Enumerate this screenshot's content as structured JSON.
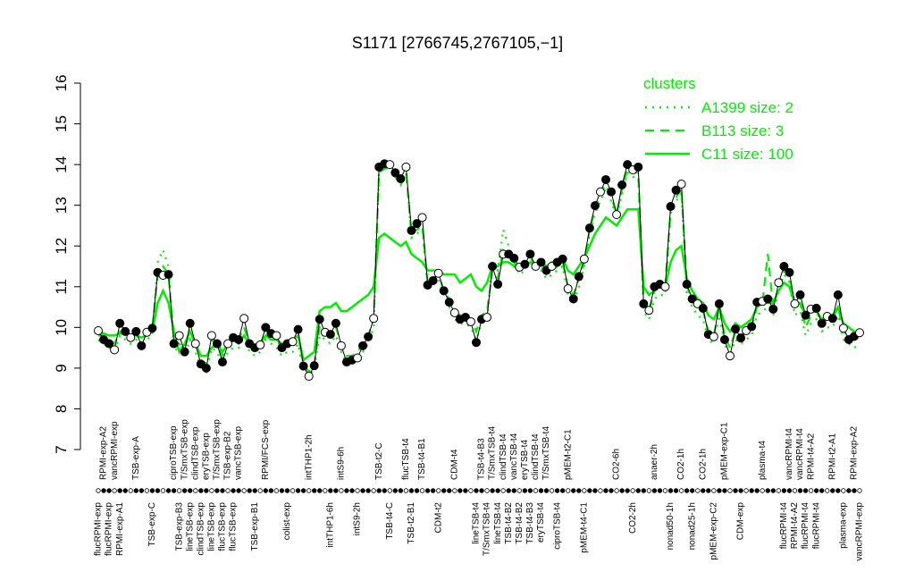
{
  "chart_data": {
    "type": "line",
    "title": "S1171 [2766745,2767105,−1]",
    "legend_title": "clusters",
    "legend_color": "#00ee00",
    "ylim": [
      7,
      16
    ],
    "yticks": [
      7,
      8,
      9,
      10,
      11,
      12,
      13,
      14,
      15,
      16
    ],
    "color": "#000000",
    "categories": [
      "flucRPMI-exp",
      "RPMI-exp-A2",
      "flucRPMI-exp",
      "vancRPMI-exp",
      "RPMI-exp-A1",
      null,
      null,
      "TSB-exp-A",
      null,
      null,
      "TSB-exp-C",
      null,
      null,
      null,
      "ciproTSB-exp",
      "TSB-exp-B3",
      "T/SmxTSB-exp",
      "lineTSB-exp",
      "clindTSB-exp",
      "clindTSB-exp",
      "eryTSB-exp",
      "lineTSB-exp",
      "T/SmxTSB-exp",
      "flucTSB-exp",
      "TSB-exp-B2",
      "flucTSB-exp",
      "vancTSB-exp",
      null,
      null,
      "TSB-exp-B1",
      null,
      "RPMI/FCS-exp",
      null,
      null,
      null,
      "colist-exp",
      null,
      null,
      null,
      "intTHP1-2h",
      null,
      null,
      null,
      "intTHP1-6h",
      null,
      "intS9-6h",
      null,
      null,
      "intS9-2h",
      null,
      null,
      null,
      "TSB-t2-C",
      null,
      "TSB-t4-C",
      null,
      null,
      "flucTSB-t4",
      "TSB-t2-B1",
      null,
      "TSB-t4-B1",
      null,
      null,
      "CDM-t2",
      null,
      null,
      "CDM-t4",
      null,
      null,
      null,
      "lineTSB-t4",
      "TSB-t4-B3",
      "T/SmxTSB-t4",
      "T/SmxTSB-t4",
      "lineTSB-t4",
      "clindTSB-t4",
      "TSB-t4-B2",
      "vancTSB-t4",
      "TSB-t4-B2",
      "eryTSB-t4",
      "TSB-t4-B3",
      "clindTSB-t4",
      "eryTSB-t4",
      "T/SmxTSB-t4",
      null,
      "ciproTSB-t4",
      null,
      "pMEM-t2-C1",
      null,
      null,
      "pMEM-t4-C1",
      null,
      null,
      null,
      null,
      null,
      "CO2-6h",
      null,
      null,
      "CO2-2h",
      null,
      null,
      null,
      "anaer-2h",
      null,
      null,
      "nonad50-1h",
      null,
      "CO2-1h",
      null,
      "nonad25-1h",
      null,
      "CO2-1h",
      null,
      "pMEM-exp-C2",
      null,
      "pMEM-exp-C1",
      null,
      null,
      "CDM-exp",
      null,
      null,
      null,
      "plasma-t4",
      null,
      null,
      null,
      "flucRPMI-t4",
      "vancRPMI-t4",
      "RPMI-t4-A2",
      "vancRPMI-t4",
      "flucRPMI-t4",
      "RPMI-t4-A2",
      "flucRPMI-t4",
      null,
      null,
      "RPMI-t2-A1",
      null,
      "plasma-exp",
      null,
      "RPMI-exp-A2",
      "vancRPMI-exp"
    ],
    "values": [
      9.92,
      9.7,
      9.6,
      9.45,
      10.1,
      9.9,
      9.75,
      9.9,
      9.55,
      9.88,
      9.98,
      11.35,
      11.28,
      11.3,
      9.6,
      9.8,
      9.4,
      10.1,
      9.6,
      9.1,
      9.0,
      9.8,
      9.6,
      9.15,
      9.6,
      9.75,
      9.7,
      10.22,
      9.6,
      9.5,
      9.57,
      10.0,
      9.85,
      9.8,
      9.5,
      9.6,
      9.65,
      9.95,
      9.05,
      8.8,
      9.06,
      10.2,
      9.88,
      9.83,
      10.1,
      9.55,
      9.15,
      9.2,
      9.25,
      9.55,
      9.77,
      10.22,
      13.94,
      14.02,
      14.0,
      13.8,
      13.65,
      13.94,
      12.38,
      12.55,
      12.7,
      11.04,
      11.15,
      11.33,
      10.9,
      10.62,
      10.36,
      10.2,
      10.25,
      10.14,
      9.63,
      10.2,
      10.25,
      11.5,
      11.06,
      11.8,
      11.8,
      11.7,
      11.48,
      11.55,
      11.8,
      11.5,
      11.6,
      11.4,
      11.5,
      11.6,
      11.68,
      10.95,
      10.7,
      11.25,
      11.68,
      12.44,
      12.99,
      13.33,
      13.63,
      13.33,
      12.77,
      13.5,
      14.0,
      13.87,
      13.94,
      10.58,
      10.42,
      11.0,
      11.06,
      11.0,
      12.97,
      13.37,
      13.52,
      11.06,
      10.7,
      10.58,
      10.47,
      9.83,
      9.77,
      10.58,
      9.7,
      9.3,
      9.96,
      9.74,
      9.92,
      10.02,
      10.62,
      10.64,
      10.7,
      10.45,
      11.1,
      11.5,
      11.35,
      10.58,
      10.8,
      10.3,
      10.45,
      10.47,
      10.1,
      10.27,
      10.22,
      10.8,
      9.98,
      9.7,
      9.78,
      9.87
    ],
    "series": [
      {
        "name": "A1399 size: 2",
        "color": "#00ee00",
        "linestyle": "dotted",
        "values": [
          9.7,
          9.6,
          9.5,
          9.4,
          9.8,
          9.7,
          9.6,
          9.7,
          9.5,
          9.7,
          9.8,
          11.6,
          11.9,
          11.5,
          9.5,
          9.4,
          9.3,
          9.7,
          9.4,
          9.0,
          8.9,
          9.5,
          9.4,
          9.1,
          9.4,
          9.5,
          9.5,
          9.8,
          9.4,
          9.3,
          9.4,
          9.7,
          9.6,
          9.5,
          9.3,
          9.4,
          9.4,
          9.6,
          8.9,
          8.8,
          9.0,
          9.8,
          9.7,
          9.6,
          9.8,
          9.4,
          9.1,
          9.1,
          9.2,
          9.4,
          9.6,
          10.0,
          13.9,
          14.0,
          14.0,
          13.8,
          13.6,
          13.9,
          12.2,
          12.3,
          12.4,
          11.0,
          11.1,
          11.2,
          10.8,
          10.5,
          10.2,
          10.1,
          10.1,
          10.0,
          9.7,
          10.1,
          10.2,
          11.6,
          11.4,
          12.4,
          12.0,
          11.6,
          11.3,
          11.4,
          11.6,
          11.4,
          11.4,
          11.2,
          11.3,
          11.4,
          11.5,
          10.8,
          10.6,
          11.0,
          11.5,
          12.3,
          12.8,
          13.1,
          13.4,
          13.1,
          12.7,
          13.3,
          13.8,
          13.7,
          13.7,
          10.4,
          10.2,
          10.7,
          10.8,
          10.8,
          12.8,
          13.1,
          13.3,
          10.8,
          10.5,
          10.3,
          10.2,
          9.7,
          9.6,
          10.3,
          9.6,
          9.3,
          9.7,
          9.6,
          9.7,
          9.8,
          10.3,
          10.4,
          10.5,
          10.3,
          10.9,
          11.3,
          11.1,
          10.3,
          10.4,
          9.8,
          10.1,
          10.2,
          9.9,
          10.0,
          10.0,
          10.3,
          9.7,
          9.6,
          9.5,
          9.6
        ]
      },
      {
        "name": "B113 size: 3",
        "color": "#00ee00",
        "linestyle": "dashed",
        "values": [
          9.8,
          9.8,
          9.7,
          9.6,
          9.9,
          9.85,
          9.8,
          9.85,
          9.7,
          9.85,
          9.95,
          11.3,
          11.5,
          11.3,
          9.7,
          9.6,
          9.5,
          9.9,
          9.6,
          9.2,
          9.1,
          9.7,
          9.6,
          9.3,
          9.6,
          9.7,
          9.7,
          10.0,
          9.6,
          9.5,
          9.6,
          9.9,
          9.8,
          9.7,
          9.5,
          9.6,
          9.6,
          9.8,
          9.1,
          8.9,
          9.1,
          10.0,
          9.9,
          9.8,
          10.0,
          9.6,
          9.3,
          9.3,
          9.4,
          9.6,
          9.8,
          10.2,
          13.8,
          13.9,
          13.9,
          13.7,
          13.5,
          13.8,
          12.3,
          12.4,
          12.5,
          11.1,
          11.2,
          11.3,
          10.9,
          10.7,
          10.4,
          10.3,
          10.3,
          10.2,
          9.9,
          10.3,
          10.4,
          11.4,
          11.2,
          11.9,
          11.8,
          11.6,
          11.4,
          11.5,
          11.7,
          11.5,
          11.5,
          11.3,
          11.4,
          11.5,
          11.6,
          11.0,
          10.8,
          11.2,
          11.6,
          12.4,
          12.9,
          13.3,
          13.5,
          13.2,
          12.8,
          13.4,
          13.9,
          13.8,
          13.8,
          10.6,
          10.4,
          10.9,
          11.0,
          11.0,
          12.9,
          13.2,
          13.4,
          11.0,
          10.7,
          10.5,
          10.4,
          9.9,
          9.8,
          10.5,
          9.8,
          9.5,
          9.9,
          9.8,
          9.9,
          10.0,
          10.5,
          10.6,
          11.8,
          10.5,
          11.0,
          11.4,
          11.3,
          10.5,
          10.6,
          10.0,
          10.3,
          10.4,
          10.1,
          10.2,
          10.2,
          10.5,
          9.9,
          9.8,
          9.8,
          9.8
        ]
      },
      {
        "name": "C11 size: 100",
        "color": "#00ee00",
        "linestyle": "solid",
        "values": [
          9.9,
          9.85,
          9.8,
          9.8,
          9.85,
          9.85,
          9.8,
          9.8,
          9.75,
          9.8,
          9.9,
          10.6,
          10.9,
          10.6,
          9.9,
          9.4,
          9.6,
          9.9,
          9.6,
          9.3,
          9.3,
          9.5,
          9.6,
          9.4,
          9.6,
          9.7,
          9.6,
          9.8,
          9.6,
          9.5,
          9.6,
          9.8,
          9.7,
          9.7,
          9.6,
          9.6,
          9.7,
          9.8,
          9.2,
          9.3,
          9.4,
          10.4,
          10.5,
          10.5,
          10.6,
          10.4,
          10.4,
          10.5,
          10.6,
          10.7,
          10.8,
          11.0,
          12.2,
          12.3,
          12.2,
          12.1,
          12.0,
          12.1,
          11.8,
          11.7,
          11.6,
          11.4,
          11.4,
          11.4,
          11.3,
          11.3,
          11.3,
          11.1,
          11.2,
          11.3,
          11.0,
          10.9,
          11.1,
          11.5,
          11.5,
          11.6,
          11.6,
          11.5,
          11.4,
          11.5,
          11.6,
          11.5,
          11.6,
          11.5,
          11.6,
          11.6,
          11.7,
          11.4,
          11.3,
          11.5,
          11.7,
          12.0,
          12.3,
          12.5,
          12.7,
          12.6,
          12.5,
          12.7,
          12.9,
          12.9,
          12.9,
          11.0,
          10.8,
          10.9,
          11.0,
          11.0,
          11.6,
          11.9,
          12.0,
          11.2,
          10.9,
          10.7,
          10.6,
          10.3,
          10.2,
          10.5,
          10.1,
          9.9,
          10.1,
          10.0,
          10.1,
          10.2,
          10.5,
          10.6,
          10.6,
          10.6,
          10.9,
          11.1,
          11.0,
          10.6,
          10.6,
          10.3,
          10.4,
          10.4,
          10.2,
          10.3,
          10.3,
          10.5,
          10.1,
          10.0,
          9.9,
          9.8
        ]
      }
    ]
  }
}
